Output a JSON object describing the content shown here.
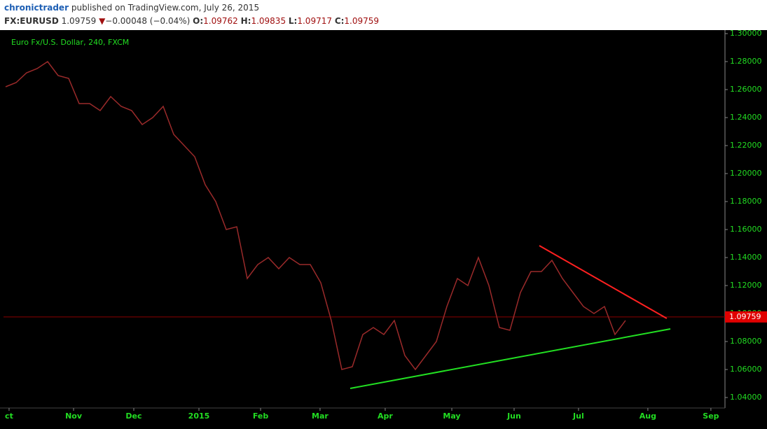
{
  "header": {
    "author": "chronictrader",
    "published": "published on TradingView.com, July 26, 2015",
    "symbol": "FX:EURUSD",
    "last": "1.09759",
    "change": "−0.00048 (−0.04%)",
    "open_label": "O:",
    "open": "1.09762",
    "high_label": "H:",
    "high": "1.09835",
    "low_label": "L:",
    "low": "1.09717",
    "close_label": "C:",
    "close": "1.09759"
  },
  "chart_data": {
    "type": "line",
    "x": [
      0,
      1,
      2,
      3,
      4,
      5,
      6,
      7,
      8,
      9,
      10,
      11,
      12,
      13,
      14,
      15,
      16,
      17,
      18,
      19,
      20,
      21,
      22,
      23,
      24,
      25,
      26,
      27,
      28,
      29,
      30,
      31,
      32,
      33,
      34,
      35,
      36,
      37,
      38,
      39,
      40,
      41,
      42,
      43,
      44,
      45,
      46,
      47,
      48,
      49,
      50,
      51,
      52,
      53,
      54,
      55,
      56,
      57,
      58,
      59
    ],
    "series": [
      {
        "name": "Euro Fx/U.S. Dollar, 240, FXCM",
        "color": "#9a2a2a",
        "values": [
          1.262,
          1.265,
          1.272,
          1.275,
          1.28,
          1.27,
          1.268,
          1.25,
          1.25,
          1.245,
          1.255,
          1.248,
          1.245,
          1.235,
          1.24,
          1.248,
          1.228,
          1.22,
          1.212,
          1.192,
          1.18,
          1.16,
          1.162,
          1.125,
          1.135,
          1.14,
          1.132,
          1.14,
          1.135,
          1.135,
          1.122,
          1.095,
          1.06,
          1.062,
          1.085,
          1.09,
          1.085,
          1.095,
          1.07,
          1.06,
          1.07,
          1.08,
          1.105,
          1.125,
          1.12,
          1.14,
          1.12,
          1.09,
          1.088,
          1.115,
          1.13,
          1.13,
          1.138,
          1.125,
          1.115,
          1.105,
          1.1,
          1.105,
          1.085,
          1.095
        ]
      }
    ],
    "xlim": [
      -0.2,
      68.47
    ],
    "xticks": [
      {
        "value": 0.33,
        "label": "ct"
      },
      {
        "value": 6.47,
        "label": "Nov"
      },
      {
        "value": 12.2,
        "label": "Dec"
      },
      {
        "value": 18.4,
        "label": "2015"
      },
      {
        "value": 24.27,
        "label": "Feb"
      },
      {
        "value": 29.93,
        "label": "Mar"
      },
      {
        "value": 36.13,
        "label": "Apr"
      },
      {
        "value": 42.47,
        "label": "May"
      },
      {
        "value": 48.4,
        "label": "Jun"
      },
      {
        "value": 54.53,
        "label": "Jul"
      },
      {
        "value": 61.13,
        "label": "Aug"
      },
      {
        "value": 67.13,
        "label": "Sep"
      }
    ],
    "ylim": [
      1.0325,
      1.3025
    ],
    "yticks": [
      {
        "value": 1.3,
        "label": "1.30000"
      },
      {
        "value": 1.28,
        "label": "1.28000"
      },
      {
        "value": 1.26,
        "label": "1.26000"
      },
      {
        "value": 1.24,
        "label": "1.24000"
      },
      {
        "value": 1.22,
        "label": "1.22000"
      },
      {
        "value": 1.2,
        "label": "1.20000"
      },
      {
        "value": 1.18,
        "label": "1.18000"
      },
      {
        "value": 1.16,
        "label": "1.16000"
      },
      {
        "value": 1.14,
        "label": "1.14000"
      },
      {
        "value": 1.12,
        "label": "1.12000"
      },
      {
        "value": 1.1,
        "label": "1.10000"
      },
      {
        "value": 1.08,
        "label": "1.08000"
      },
      {
        "value": 1.06,
        "label": "1.06000"
      },
      {
        "value": 1.04,
        "label": "1.04000"
      }
    ],
    "last_price": {
      "value": 1.09759,
      "label": "1.09759",
      "color": "#8b0000",
      "label_color": "#e00000"
    },
    "trendlines": [
      {
        "color": "#ff2020",
        "x": [
          50.8,
          62.93
        ],
        "y": [
          1.1485,
          1.0965
        ]
      },
      {
        "color": "#22e022",
        "x": [
          32.8,
          63.27
        ],
        "y": [
          1.0465,
          1.089
        ]
      }
    ],
    "grid": false
  }
}
